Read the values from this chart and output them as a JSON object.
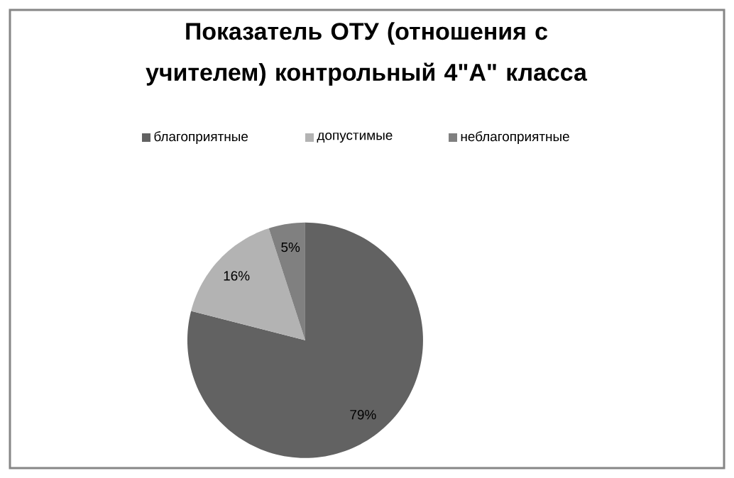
{
  "chart_data": {
    "type": "pie",
    "title": "Показатель ОТУ (отношения с учителем) контрольный 4\"А\" класса",
    "categories": [
      "благоприятные",
      "допустимые",
      "неблагоприятные"
    ],
    "values": [
      79,
      16,
      5
    ],
    "value_labels": [
      "79%",
      "16%",
      "5%"
    ],
    "colors": [
      "#626262",
      "#b3b3b3",
      "#808080"
    ],
    "legend": "top"
  }
}
